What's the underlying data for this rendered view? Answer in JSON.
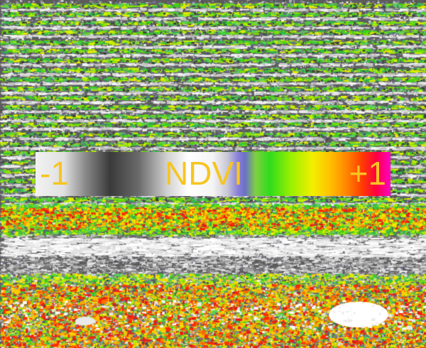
{
  "legend": {
    "min_label": "-1",
    "title": "NDVI",
    "max_label": "+1",
    "label_color": "#f7c521"
  },
  "palette": {
    "soil": [
      "#4a4a4a",
      "#6e6e6e",
      "#8f8f8f",
      "#b5b5b5",
      "#dadada",
      "#f4f4f4",
      "#7d7da8",
      "#5d5d88"
    ],
    "crop": [
      "#3cd01c",
      "#7ae000",
      "#b8f000",
      "#e8ee00",
      "#2fb84a",
      "#58d060"
    ],
    "hot": [
      "#ff2a00",
      "#ff6a00",
      "#ffae00",
      "#e61a1a"
    ]
  }
}
